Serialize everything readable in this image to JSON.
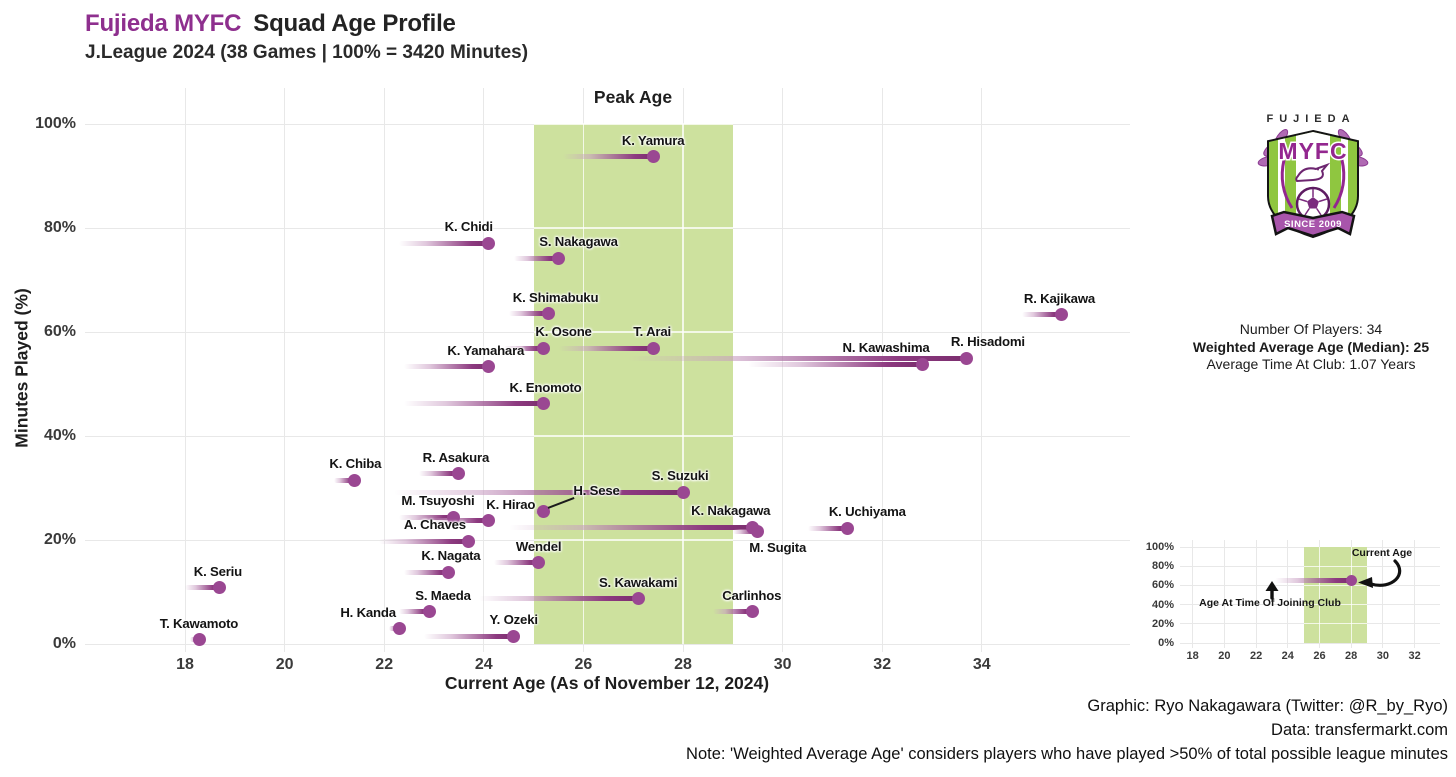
{
  "header": {
    "club": "Fujieda MYFC",
    "title": "Squad Age Profile",
    "subtitle": "J.League 2024 (38 Games | 100% = 3420 Minutes)"
  },
  "chart_data": {
    "type": "scatter",
    "variant": "lollipop-dumbbell",
    "title": "Fujieda MYFC Squad Age Profile",
    "subtitle": "J.League 2024 (38 Games | 100% = 3420 Minutes)",
    "xlabel": "Current Age (As of November 12, 2024)",
    "ylabel": "Minutes Played (%)",
    "xlim": [
      16.3,
      37.0
    ],
    "ylim": [
      0,
      100
    ],
    "x_ticks": [
      18,
      20,
      22,
      24,
      26,
      28,
      30,
      32,
      34
    ],
    "y_ticks": [
      0,
      20,
      40,
      60,
      80,
      100
    ],
    "grid": true,
    "peak_age_band": {
      "label": "Peak Age",
      "from": 25,
      "to": 29
    },
    "players": [
      {
        "name": "K. Yamura",
        "age_joined": 25.6,
        "current_age": 27.4,
        "minutes_pct": 93.7,
        "lx": 0
      },
      {
        "name": "K. Chidi",
        "age_joined": 22.3,
        "current_age": 24.1,
        "minutes_pct": 77.1,
        "lx": -20
      },
      {
        "name": "S. Nakagawa",
        "age_joined": 24.6,
        "current_age": 25.5,
        "minutes_pct": 74.2,
        "lx": 20
      },
      {
        "name": "K. Shimabuku",
        "age_joined": 24.5,
        "current_age": 25.3,
        "minutes_pct": 63.5,
        "lx": 7
      },
      {
        "name": "R. Kajikawa",
        "age_joined": 34.8,
        "current_age": 35.6,
        "minutes_pct": 63.3,
        "lx": -2
      },
      {
        "name": "K. Osone",
        "age_joined": 24.4,
        "current_age": 25.2,
        "minutes_pct": 56.9,
        "lx": 20
      },
      {
        "name": "T. Arai",
        "age_joined": 25.5,
        "current_age": 27.4,
        "minutes_pct": 56.9,
        "lx": -1
      },
      {
        "name": "R. Hisadomi",
        "age_joined": 26.9,
        "current_age": 33.7,
        "minutes_pct": 55.0,
        "lx": 21
      },
      {
        "name": "N. Kawashima",
        "age_joined": 29.3,
        "current_age": 32.8,
        "minutes_pct": 53.8,
        "lx": -36
      },
      {
        "name": "K. Yamahara",
        "age_joined": 22.4,
        "current_age": 24.1,
        "minutes_pct": 53.3,
        "lx": -3
      },
      {
        "name": "K. Enomoto",
        "age_joined": 22.4,
        "current_age": 25.2,
        "minutes_pct": 46.2,
        "lx": 2
      },
      {
        "name": "R. Asakura",
        "age_joined": 22.7,
        "current_age": 23.5,
        "minutes_pct": 32.7,
        "lx": -3
      },
      {
        "name": "K. Chiba",
        "age_joined": 21.0,
        "current_age": 21.4,
        "minutes_pct": 31.5,
        "lx": 1
      },
      {
        "name": "S. Suzuki",
        "age_joined": 22.2,
        "current_age": 28.0,
        "minutes_pct": 29.2,
        "lx": -3
      },
      {
        "name": "H. Sese",
        "age_joined": 25.0,
        "current_age": 25.2,
        "minutes_pct": 25.4,
        "lx": 53,
        "ly": -14,
        "connector": true
      },
      {
        "name": "M. Tsuyoshi",
        "age_joined": 22.3,
        "current_age": 23.4,
        "minutes_pct": 24.4,
        "lx": -16
      },
      {
        "name": "K. Hirao",
        "age_joined": 22.9,
        "current_age": 24.1,
        "minutes_pct": 23.7,
        "lx": 22
      },
      {
        "name": "K. Nakagawa",
        "age_joined": 24.5,
        "current_age": 29.4,
        "minutes_pct": 22.5,
        "lx": -22
      },
      {
        "name": "K. Uchiyama",
        "age_joined": 30.5,
        "current_age": 31.3,
        "minutes_pct": 22.3,
        "lx": 20
      },
      {
        "name": "M. Sugita",
        "age_joined": 29.0,
        "current_age": 29.5,
        "minutes_pct": 21.6,
        "lx": 20,
        "ly": 23
      },
      {
        "name": "A. Chaves",
        "age_joined": 21.9,
        "current_age": 23.7,
        "minutes_pct": 19.8,
        "lx": -34
      },
      {
        "name": "Wendel",
        "age_joined": 24.2,
        "current_age": 25.1,
        "minutes_pct": 15.6,
        "lx": 0
      },
      {
        "name": "K. Nagata",
        "age_joined": 22.4,
        "current_age": 23.3,
        "minutes_pct": 13.8,
        "lx": 2
      },
      {
        "name": "K. Seriu",
        "age_joined": 18.0,
        "current_age": 18.7,
        "minutes_pct": 10.8,
        "lx": -2
      },
      {
        "name": "S. Kawakami",
        "age_joined": 23.9,
        "current_age": 27.1,
        "minutes_pct": 8.7,
        "lx": 0
      },
      {
        "name": "S. Maeda",
        "age_joined": 22.3,
        "current_age": 22.9,
        "minutes_pct": 6.2,
        "lx": 14
      },
      {
        "name": "Carlinhos",
        "age_joined": 28.6,
        "current_age": 29.4,
        "minutes_pct": 6.2,
        "lx": -1
      },
      {
        "name": "H. Kanda",
        "age_joined": 22.1,
        "current_age": 22.3,
        "minutes_pct": 2.9,
        "lx": -31
      },
      {
        "name": "Y. Ozeki",
        "age_joined": 22.8,
        "current_age": 24.6,
        "minutes_pct": 1.5,
        "lx": 0
      },
      {
        "name": "T. Kawamoto",
        "age_joined": 18.1,
        "current_age": 18.3,
        "minutes_pct": 0.8,
        "lx": -1
      }
    ]
  },
  "sidebar": {
    "stats": [
      "Number Of Players: 34",
      "Weighted Average Age (Median): 25",
      "Average Time At Club: 1.07 Years"
    ],
    "crest": {
      "club_name": "FUJIEDA",
      "initials": "MYFC",
      "since": "SINCE 2009"
    }
  },
  "legend_chart": {
    "x_ticks": [
      18,
      20,
      22,
      24,
      26,
      28,
      30,
      32
    ],
    "y_ticks": [
      0,
      20,
      40,
      60,
      80,
      100
    ],
    "band": {
      "from": 25,
      "to": 29
    },
    "example": {
      "age_joined": 23.2,
      "current_age": 28,
      "minutes_pct": 65
    },
    "labels": {
      "current_age": "Current Age",
      "age_joined": "Age At Time Of Joining Club"
    }
  },
  "captions": {
    "graphic": "Graphic: Ryo Nakagawara (Twitter: @R_by_Ryo)",
    "data": "Data: transfermarkt.com",
    "note": "Note: 'Weighted Average Age' considers players who have played >50% of total possible league minutes"
  },
  "colors": {
    "accent_purple": "#8e2f8e",
    "dot": "#9a4792",
    "tail_dark": "#7b2d6e",
    "band_green": "#cde19e",
    "grid": "#e8e8e8",
    "crest_green": "#8fc640",
    "crest_purple": "#93278f"
  }
}
